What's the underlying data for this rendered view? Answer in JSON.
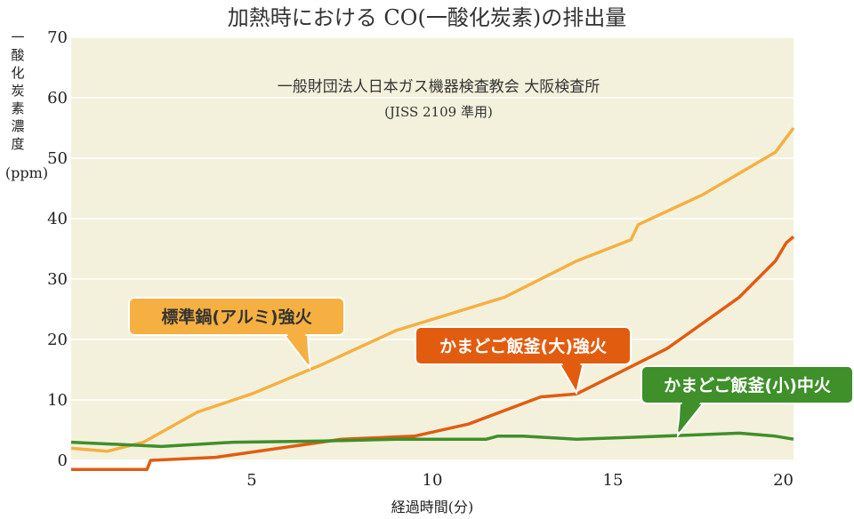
{
  "chart_data": {
    "type": "line",
    "title": "加熱時における CO(一酸化炭素)の排出量",
    "note_line1": "一般財団法人日本ガス機器検査教会 大阪検査所",
    "note_line2": "(JISS 2109 準用)",
    "xlabel": "経過時間(分)",
    "ylabel": "一酸化炭素濃度",
    "ylabel_unit": "(ppm)",
    "xlim": [
      0,
      20
    ],
    "ylim": [
      0,
      70
    ],
    "x_ticks": [
      5,
      10,
      15,
      20
    ],
    "y_ticks": [
      0,
      10,
      20,
      30,
      40,
      50,
      60,
      70
    ],
    "grid": "horizontal",
    "background": "#f3f1dc",
    "series": [
      {
        "name": "標準鍋(アルミ)強火",
        "color": "#f5b041",
        "label_color": "#f5b041",
        "label_text_color": "#333333",
        "x": [
          0,
          1,
          2,
          3.5,
          5,
          7,
          9,
          12,
          14,
          15.5,
          15.7,
          17.5,
          18.5,
          19.5,
          20
        ],
        "y": [
          2,
          1.5,
          3,
          8,
          11,
          16,
          21.5,
          27,
          33,
          36.5,
          39,
          44,
          47.5,
          51,
          55
        ]
      },
      {
        "name": "かまどご飯釜(大)強火",
        "color": "#e25c10",
        "label_color": "#e25c10",
        "label_text_color": "#ffffff",
        "x": [
          0,
          2.1,
          2.2,
          4,
          7.5,
          9.5,
          11,
          13,
          14,
          16.5,
          18.5,
          19.5,
          19.8,
          20
        ],
        "y": [
          -1.5,
          -1.5,
          0,
          0.5,
          3.5,
          4,
          6,
          10.5,
          11,
          18.5,
          27,
          33,
          36,
          37
        ]
      },
      {
        "name": "かまどご飯釜(小)中火",
        "color": "#3f8f2a",
        "label_color": "#3f8f2a",
        "label_text_color": "#ffffff",
        "x": [
          0,
          2.5,
          4.5,
          7,
          9,
          11.5,
          11.8,
          12.5,
          14,
          15.5,
          18.5,
          19.5,
          20
        ],
        "y": [
          3,
          2.3,
          3,
          3.2,
          3.5,
          3.5,
          4,
          4,
          3.5,
          3.8,
          4.5,
          4,
          3.5
        ]
      }
    ]
  }
}
